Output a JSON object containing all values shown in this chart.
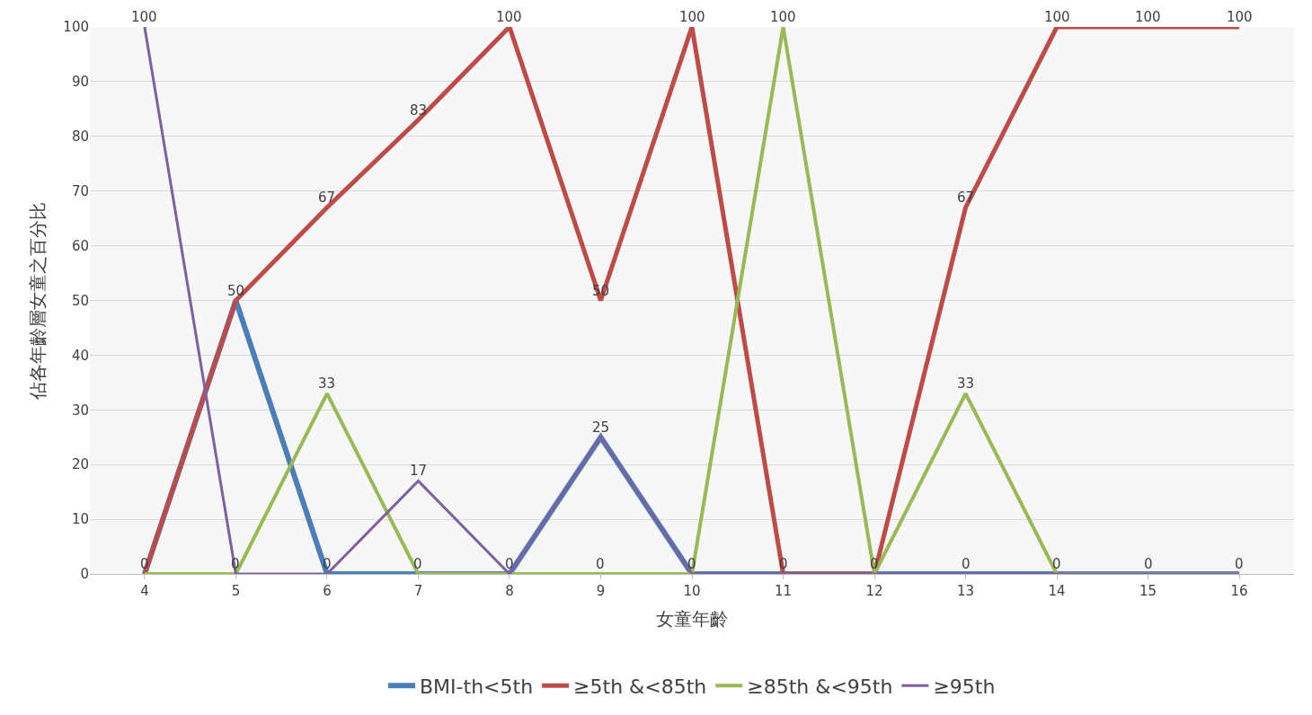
{
  "chart_data": {
    "type": "line",
    "xlabel": "女童年齡",
    "ylabel": "佔各年齡層女童之百分比",
    "categories": [
      "4",
      "5",
      "6",
      "7",
      "8",
      "9",
      "10",
      "11",
      "12",
      "13",
      "14",
      "15",
      "16"
    ],
    "series": [
      {
        "name": "BMI-th<5th",
        "color": "#4a7ebb",
        "values": [
          0,
          50,
          0,
          0,
          0,
          25,
          0,
          0,
          0,
          0,
          0,
          0,
          0
        ]
      },
      {
        "name": "≥5th &<85th",
        "color": "#be4b48",
        "values": [
          0,
          50,
          67,
          83,
          100,
          50,
          100,
          0,
          0,
          67,
          100,
          100,
          100
        ],
        "value_labels": [
          null,
          "50",
          "67",
          "83",
          "100",
          "50",
          "100",
          null,
          null,
          "67",
          "100",
          "100",
          "100"
        ]
      },
      {
        "name": "≥85th &<95th",
        "color": "#98b954",
        "values": [
          0,
          0,
          33,
          0,
          0,
          0,
          0,
          100,
          0,
          33,
          0,
          0,
          0
        ],
        "value_labels": [
          "0",
          null,
          "33",
          "0",
          null,
          "0",
          null,
          "100",
          null,
          "33",
          null,
          null,
          null
        ]
      },
      {
        "name": "≥95th",
        "color": "#7d60a0",
        "values": [
          100,
          0,
          0,
          17,
          0,
          25,
          0,
          0,
          0,
          0,
          0,
          0,
          0
        ],
        "value_labels": [
          "100",
          "0",
          "0",
          "17",
          "0",
          "25",
          "0",
          "0",
          "0",
          "0",
          "0",
          "0",
          "0"
        ]
      }
    ],
    "ylim": [
      0,
      100
    ],
    "yticks": [
      0,
      10,
      20,
      30,
      40,
      50,
      60,
      70,
      80,
      90,
      100
    ],
    "grid": "y",
    "legend": "bottom",
    "marker": "none",
    "line_style": "solid"
  }
}
